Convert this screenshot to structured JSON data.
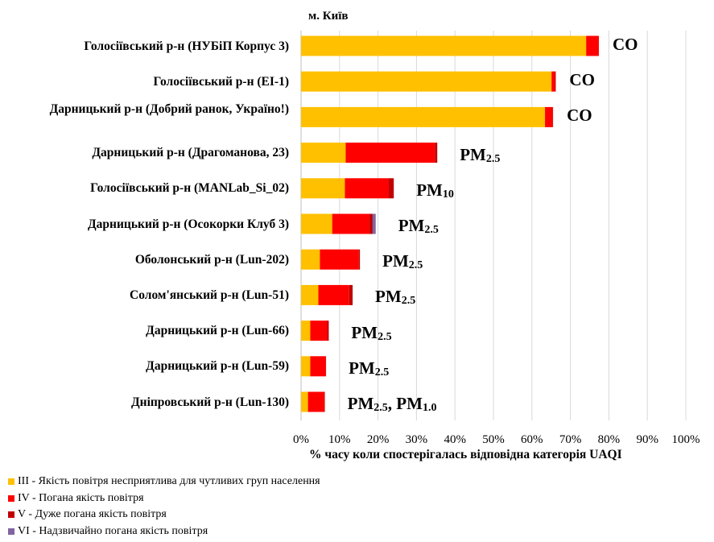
{
  "chart_data": {
    "type": "bar",
    "orientation": "horizontal",
    "stacked": true,
    "title": "м. Київ",
    "xlabel": "% часу коли спостерігалась відповідна категорія UAQI",
    "xlim": [
      0,
      100
    ],
    "xticks": [
      "0%",
      "10%",
      "20%",
      "30%",
      "40%",
      "50%",
      "60%",
      "70%",
      "80%",
      "90%",
      "100%"
    ],
    "grid": true,
    "legend_position": "bottom-left",
    "categories": [
      "Голосіївський р-н (НУБіП Корпус 3)",
      "Голосіївський р-н (EI-1)",
      "Дарницький р-н (Добрий ранок, Україно!)",
      "Дарницький р-н (Драгоманова, 23)",
      "Голосіївський р-н (MANLab_Si_02)",
      "Дарницький р-н (Осокорки Клуб 3)",
      "Оболонський р-н (Lun-202)",
      "Солом'янський р-н (Lun-51)",
      "Дарницький р-н (Lun-66)",
      "Дарницький р-н (Lun-59)",
      "Дніпровський р-н (Lun-130)"
    ],
    "annotations": [
      [
        "CO",
        ""
      ],
      [
        "CO",
        ""
      ],
      [
        "CO",
        ""
      ],
      [
        "PM",
        "2.5"
      ],
      [
        "PM",
        "10"
      ],
      [
        "PM",
        "2.5"
      ],
      [
        "PM",
        "2.5"
      ],
      [
        "PM",
        "2.5"
      ],
      [
        "PM",
        "2.5"
      ],
      [
        "PM",
        "2.5"
      ],
      [
        "PM",
        "2.5",
        ", PM",
        "1.0"
      ]
    ],
    "series": [
      {
        "name": "III - Якість повітря несприятлива для чутливих груп населення",
        "color": "#FFC000",
        "values": [
          74.1,
          65.1,
          63.4,
          11.6,
          11.4,
          8.1,
          4.9,
          4.5,
          2.4,
          2.4,
          1.8
        ]
      },
      {
        "name": "IV - Погана якість повітря",
        "color": "#FF0000",
        "values": [
          3.3,
          0.9,
          2.0,
          23.2,
          11.4,
          9.7,
          10.1,
          8.0,
          4.4,
          4.0,
          4.3
        ]
      },
      {
        "name": "V - Дуже погана якість повітря",
        "color": "#C00000",
        "values": [
          0.0,
          0.2,
          0.1,
          0.6,
          1.3,
          0.8,
          0.3,
          0.9,
          0.4,
          0.1,
          0.1
        ]
      },
      {
        "name": "VI - Надзвичайно погана якість повітря",
        "color": "#8064A2",
        "values": [
          0,
          0,
          0,
          0,
          0,
          0.8,
          0,
          0,
          0,
          0,
          0
        ]
      }
    ]
  }
}
